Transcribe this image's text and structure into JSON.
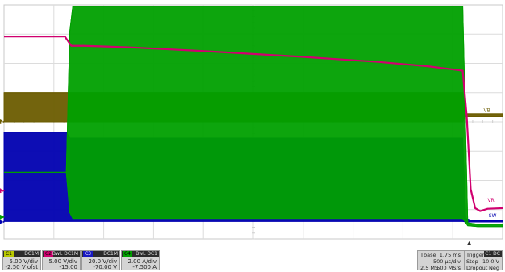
{
  "chart_data": {
    "type": "line",
    "title": "",
    "xlabel": "",
    "ylabel": "",
    "grid": true,
    "x_divisions": 10,
    "y_divisions": 8,
    "x_range_div": [
      0,
      10
    ],
    "y_range_div": [
      -4,
      4
    ],
    "series": [
      {
        "name": "",
        "channel": "C1",
        "color": "#00a000",
        "style": "switching",
        "x": [
          0,
          1.25,
          1.32,
          1.38,
          9.2,
          9.3,
          9.5,
          10
        ],
        "low": [
          -1.72,
          -1.72,
          -3.1,
          -3.3,
          -3.3,
          -3.55,
          -3.58,
          -3.58
        ],
        "high": [
          -1.72,
          -1.72,
          3.1,
          3.95,
          3.95,
          -3.45,
          -3.5,
          -3.5
        ]
      },
      {
        "name": "",
        "channel": "C2",
        "color": "#d0006f",
        "style": "line",
        "x": [
          0,
          1.22,
          1.35,
          1.6,
          2.5,
          4,
          6,
          7.5,
          8.5,
          9.2,
          9.28,
          9.36,
          9.45,
          9.55,
          9.7,
          10
        ],
        "y": [
          2.92,
          2.92,
          2.6,
          2.6,
          2.55,
          2.42,
          2.22,
          2.05,
          1.9,
          1.75,
          0.2,
          -2.3,
          -2.95,
          -3.05,
          -2.97,
          -2.95
        ]
      },
      {
        "name": "",
        "channel": "C3",
        "color": "#0000b0",
        "style": "switching",
        "x": [
          0,
          1.25,
          1.32,
          9.2,
          9.26,
          9.4,
          10
        ],
        "low": [
          -3.4,
          -3.4,
          -3.4,
          -3.4,
          -3.42,
          -3.42,
          -3.42
        ],
        "high": [
          -0.35,
          -0.35,
          -0.55,
          -0.55,
          -3.3,
          -3.38,
          -3.38
        ]
      },
      {
        "name": "",
        "channel": "C4",
        "color": "#6b5c00",
        "style": "switching",
        "x": [
          0,
          9.2,
          9.25,
          10
        ],
        "low": [
          0.0,
          0.0,
          0.18,
          0.18
        ],
        "high": [
          1.0,
          1.0,
          0.28,
          0.28
        ]
      }
    ],
    "annotations": [
      {
        "text": "VB",
        "x": 9.62,
        "y": 0.35,
        "color": "#6b5c00"
      },
      {
        "text": "VR",
        "x": 9.7,
        "y": -2.73,
        "color": "#d0006f"
      },
      {
        "text": "SW",
        "x": 9.72,
        "y": -3.25,
        "color": "#0000b0"
      }
    ],
    "ground_markers": [
      {
        "channel": "C4",
        "y": 0.0,
        "color": "#6b5c00"
      },
      {
        "channel": "C2",
        "y": -2.35,
        "color": "#d0006f"
      },
      {
        "channel": "C1",
        "y": -3.25,
        "color": "#00a000"
      },
      {
        "channel": "C3",
        "y": -3.42,
        "color": "#0000b0"
      }
    ],
    "trigger_x": 9.33
  },
  "channels": [
    {
      "tag": "C1",
      "coupling": "DC1M",
      "scale": "5.00 V/div",
      "offset": "-2.50 V ofst",
      "color": "#b8c800"
    },
    {
      "tag": "C2",
      "coupling": "BwL DC1M",
      "scale": "5.00 V/div",
      "offset": "-15.00",
      "color": "#d0006f"
    },
    {
      "tag": "C3",
      "coupling": "DC1M",
      "scale": "20.0 V/div",
      "offset": "-70.00 V",
      "color": "#1818c0"
    },
    {
      "tag": "C4",
      "coupling": "BwL DC1",
      "scale": "2.00 A/div",
      "offset": "-7.500 A",
      "color": "#00a000"
    }
  ],
  "timebase": {
    "label": "Tbase",
    "value": "1.75 ms",
    "per_div": "500 µs/div",
    "sample_label": "2.5 MS",
    "sample_rate": "500 MS/s"
  },
  "trigger": {
    "label": "Trigger",
    "head": "C1 DC",
    "mode": "Stop",
    "level": "10.0 V",
    "type": "Dropout",
    "type_value": "Neg"
  }
}
